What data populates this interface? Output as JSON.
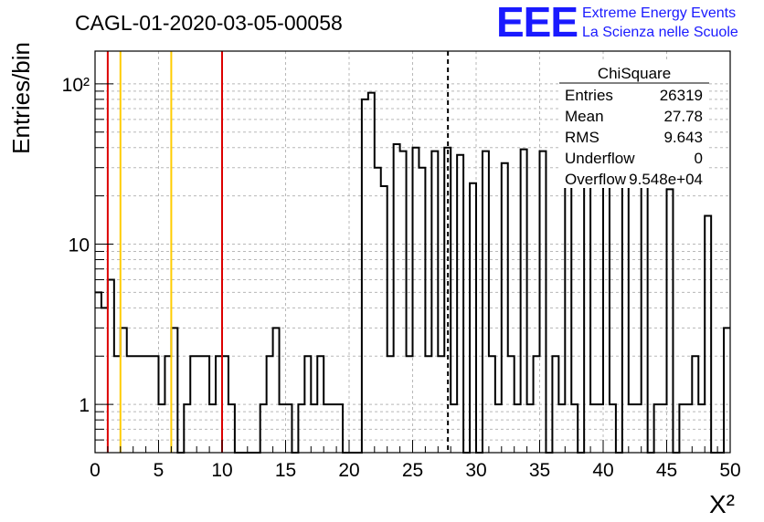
{
  "header": {
    "run_title": "CAGL-01-2020-03-05-00058",
    "logo_letters": "EEE",
    "logo_line1": "Extreme Energy Events",
    "logo_line2": "La Scienza nelle Scuole",
    "logo_color": "#1a1aff"
  },
  "stats": {
    "title": "ChiSquare",
    "rows": [
      {
        "label": "Entries",
        "value": "26319"
      },
      {
        "label": "Mean",
        "value": "27.78"
      },
      {
        "label": "RMS",
        "value": "9.643"
      },
      {
        "label": "Underflow",
        "value": "0"
      },
      {
        "label": "Overflow",
        "value": "9.548e+04"
      }
    ]
  },
  "chart_data": {
    "type": "bar",
    "histogram_style": "step",
    "xlabel": "X²",
    "ylabel": "Entries/bin",
    "xlim": [
      0,
      50
    ],
    "ylim": [
      0.5,
      160
    ],
    "y_scale": "log",
    "grid": true,
    "x_ticks": [
      "0",
      "5",
      "10",
      "15",
      "20",
      "25",
      "30",
      "35",
      "40",
      "45",
      "50"
    ],
    "y_ticks": [
      {
        "value": 1,
        "label": "1"
      },
      {
        "value": 10,
        "label": "10"
      },
      {
        "value": 100,
        "label": "10²"
      }
    ],
    "bin_width": 0.5,
    "bins": [
      [
        0,
        5
      ],
      [
        0.5,
        4
      ],
      [
        1,
        6
      ],
      [
        1.5,
        2
      ],
      [
        2,
        3
      ],
      [
        2.5,
        2
      ],
      [
        3,
        2
      ],
      [
        3.5,
        2
      ],
      [
        4,
        2
      ],
      [
        4.5,
        2
      ],
      [
        5,
        1
      ],
      [
        5.5,
        2
      ],
      [
        6,
        3
      ],
      [
        6.5,
        0
      ],
      [
        7,
        1
      ],
      [
        7.5,
        2
      ],
      [
        8,
        2
      ],
      [
        8.5,
        2
      ],
      [
        9,
        1
      ],
      [
        9.5,
        2
      ],
      [
        10,
        2
      ],
      [
        10.5,
        1
      ],
      [
        11,
        0
      ],
      [
        11.5,
        0
      ],
      [
        12,
        0
      ],
      [
        12.5,
        0
      ],
      [
        13,
        1
      ],
      [
        13.5,
        2
      ],
      [
        14,
        3
      ],
      [
        14.5,
        1
      ],
      [
        15,
        1
      ],
      [
        15.5,
        0
      ],
      [
        16,
        1
      ],
      [
        16.5,
        2
      ],
      [
        17,
        1
      ],
      [
        17.5,
        2
      ],
      [
        18,
        1
      ],
      [
        18.5,
        1
      ],
      [
        19,
        1
      ],
      [
        19.5,
        0
      ],
      [
        20,
        0
      ],
      [
        20.5,
        0
      ],
      [
        21,
        80
      ],
      [
        21.5,
        88
      ],
      [
        22,
        30
      ],
      [
        22.5,
        23
      ],
      [
        23,
        2
      ],
      [
        23.5,
        42
      ],
      [
        24,
        38
      ],
      [
        24.5,
        2
      ],
      [
        25,
        40
      ],
      [
        25.5,
        30
      ],
      [
        26,
        2
      ],
      [
        26.5,
        38
      ],
      [
        27,
        2
      ],
      [
        27.5,
        40
      ],
      [
        28,
        1
      ],
      [
        28.5,
        36
      ],
      [
        29,
        0
      ],
      [
        29.5,
        24
      ],
      [
        30,
        0
      ],
      [
        30.5,
        38
      ],
      [
        31,
        2
      ],
      [
        31.5,
        1
      ],
      [
        32,
        32
      ],
      [
        32.5,
        2
      ],
      [
        33,
        1
      ],
      [
        33.5,
        39
      ],
      [
        34,
        1
      ],
      [
        34.5,
        2
      ],
      [
        35,
        38
      ],
      [
        35.5,
        0
      ],
      [
        36,
        2
      ],
      [
        36.5,
        1
      ],
      [
        37,
        37
      ],
      [
        37.5,
        1
      ],
      [
        38,
        0
      ],
      [
        38.5,
        28
      ],
      [
        39,
        1
      ],
      [
        39.5,
        1
      ],
      [
        40,
        28
      ],
      [
        40.5,
        1
      ],
      [
        41,
        0
      ],
      [
        41.5,
        24
      ],
      [
        42,
        1
      ],
      [
        42.5,
        1
      ],
      [
        43,
        26
      ],
      [
        43.5,
        0
      ],
      [
        44,
        1
      ],
      [
        44.5,
        1
      ],
      [
        45,
        22
      ],
      [
        45.5,
        0
      ],
      [
        46,
        1
      ],
      [
        46.5,
        1
      ],
      [
        47,
        2
      ],
      [
        47.5,
        1
      ],
      [
        48,
        15
      ],
      [
        48.5,
        0
      ],
      [
        49,
        0
      ],
      [
        49.5,
        3
      ]
    ],
    "vertical_lines": [
      {
        "x": 1,
        "color": "#dd0000",
        "style": "solid"
      },
      {
        "x": 2,
        "color": "#ffcc00",
        "style": "solid"
      },
      {
        "x": 6,
        "color": "#ffcc00",
        "style": "solid"
      },
      {
        "x": 10,
        "color": "#dd0000",
        "style": "solid"
      },
      {
        "x": 27.78,
        "color": "#000000",
        "style": "dashed"
      }
    ]
  }
}
